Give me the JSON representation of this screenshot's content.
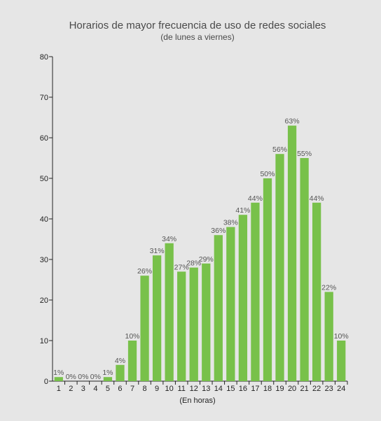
{
  "chart_data": {
    "type": "bar",
    "title": "Horarios de mayor frecuencia de uso de redes sociales",
    "subtitle": "(de lunes a viernes)",
    "xlabel": "(En horas)",
    "ylabel": "",
    "ylim": [
      0,
      80
    ],
    "yticks": [
      0,
      10,
      20,
      30,
      40,
      50,
      60,
      70,
      80
    ],
    "categories": [
      "1",
      "2",
      "3",
      "4",
      "5",
      "6",
      "7",
      "8",
      "9",
      "10",
      "11",
      "12",
      "13",
      "14",
      "15",
      "16",
      "17",
      "18",
      "19",
      "20",
      "21",
      "22",
      "23",
      "24"
    ],
    "values": [
      1,
      0,
      0,
      0,
      1,
      4,
      10,
      26,
      31,
      34,
      27,
      28,
      29,
      36,
      38,
      41,
      44,
      50,
      56,
      63,
      55,
      44,
      22,
      10
    ],
    "data_labels": [
      "1%",
      "0%",
      "0%",
      "0%",
      "1%",
      "4%",
      "10%",
      "26%",
      "31%",
      "34%",
      "27%",
      "28%",
      "29%",
      "36%",
      "38%",
      "41%",
      "44%",
      "50%",
      "56%",
      "63%",
      "55%",
      "44%",
      "22%",
      "10%"
    ],
    "bar_color": "#78c14a",
    "grid": false,
    "legend": "none"
  }
}
